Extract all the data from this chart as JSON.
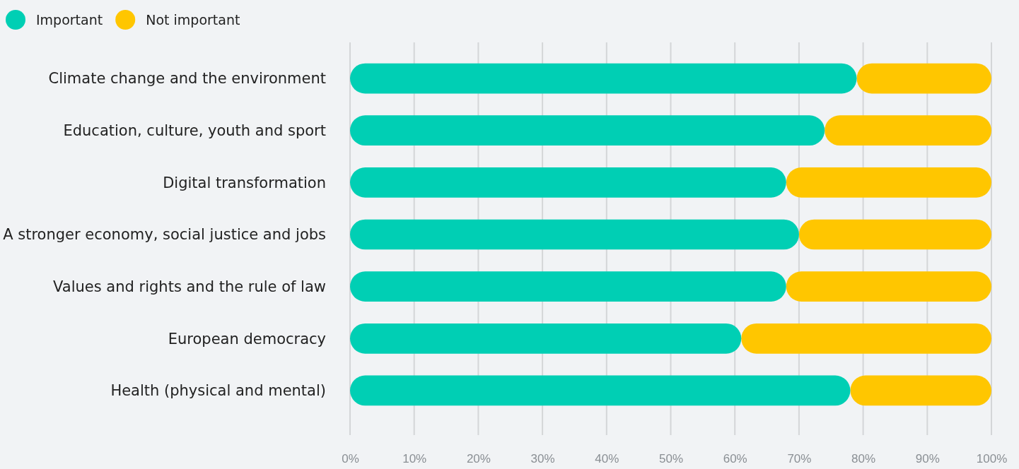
{
  "chart_data": {
    "type": "bar",
    "orientation": "horizontal",
    "stacked": true,
    "categories": [
      "Climate change and the environment",
      "Education, culture, youth and sport",
      "Digital transformation",
      "A stronger economy, social justice and jobs",
      "Values and rights and the rule of law",
      "European democracy",
      "Health (physical and mental)"
    ],
    "series": [
      {
        "name": "Important",
        "color": "#00cfb4",
        "values": [
          79,
          74,
          68,
          70,
          68,
          61,
          78
        ]
      },
      {
        "name": "Not important",
        "color": "#ffc600",
        "values": [
          21,
          26,
          32,
          30,
          32,
          39,
          22
        ]
      }
    ],
    "xlim": [
      0,
      100
    ],
    "xticks": [
      {
        "value": 0,
        "label": "0%"
      },
      {
        "value": 10,
        "label": "10%"
      },
      {
        "value": 20,
        "label": "20%"
      },
      {
        "value": 30,
        "label": "30%"
      },
      {
        "value": 40,
        "label": "40%"
      },
      {
        "value": 50,
        "label": "50%"
      },
      {
        "value": 60,
        "label": "60%"
      },
      {
        "value": 70,
        "label": "70%"
      },
      {
        "value": 80,
        "label": "80%"
      },
      {
        "value": 90,
        "label": "90%"
      },
      {
        "value": 100,
        "label": "100%"
      }
    ],
    "grid": "x",
    "legend": "top left"
  }
}
